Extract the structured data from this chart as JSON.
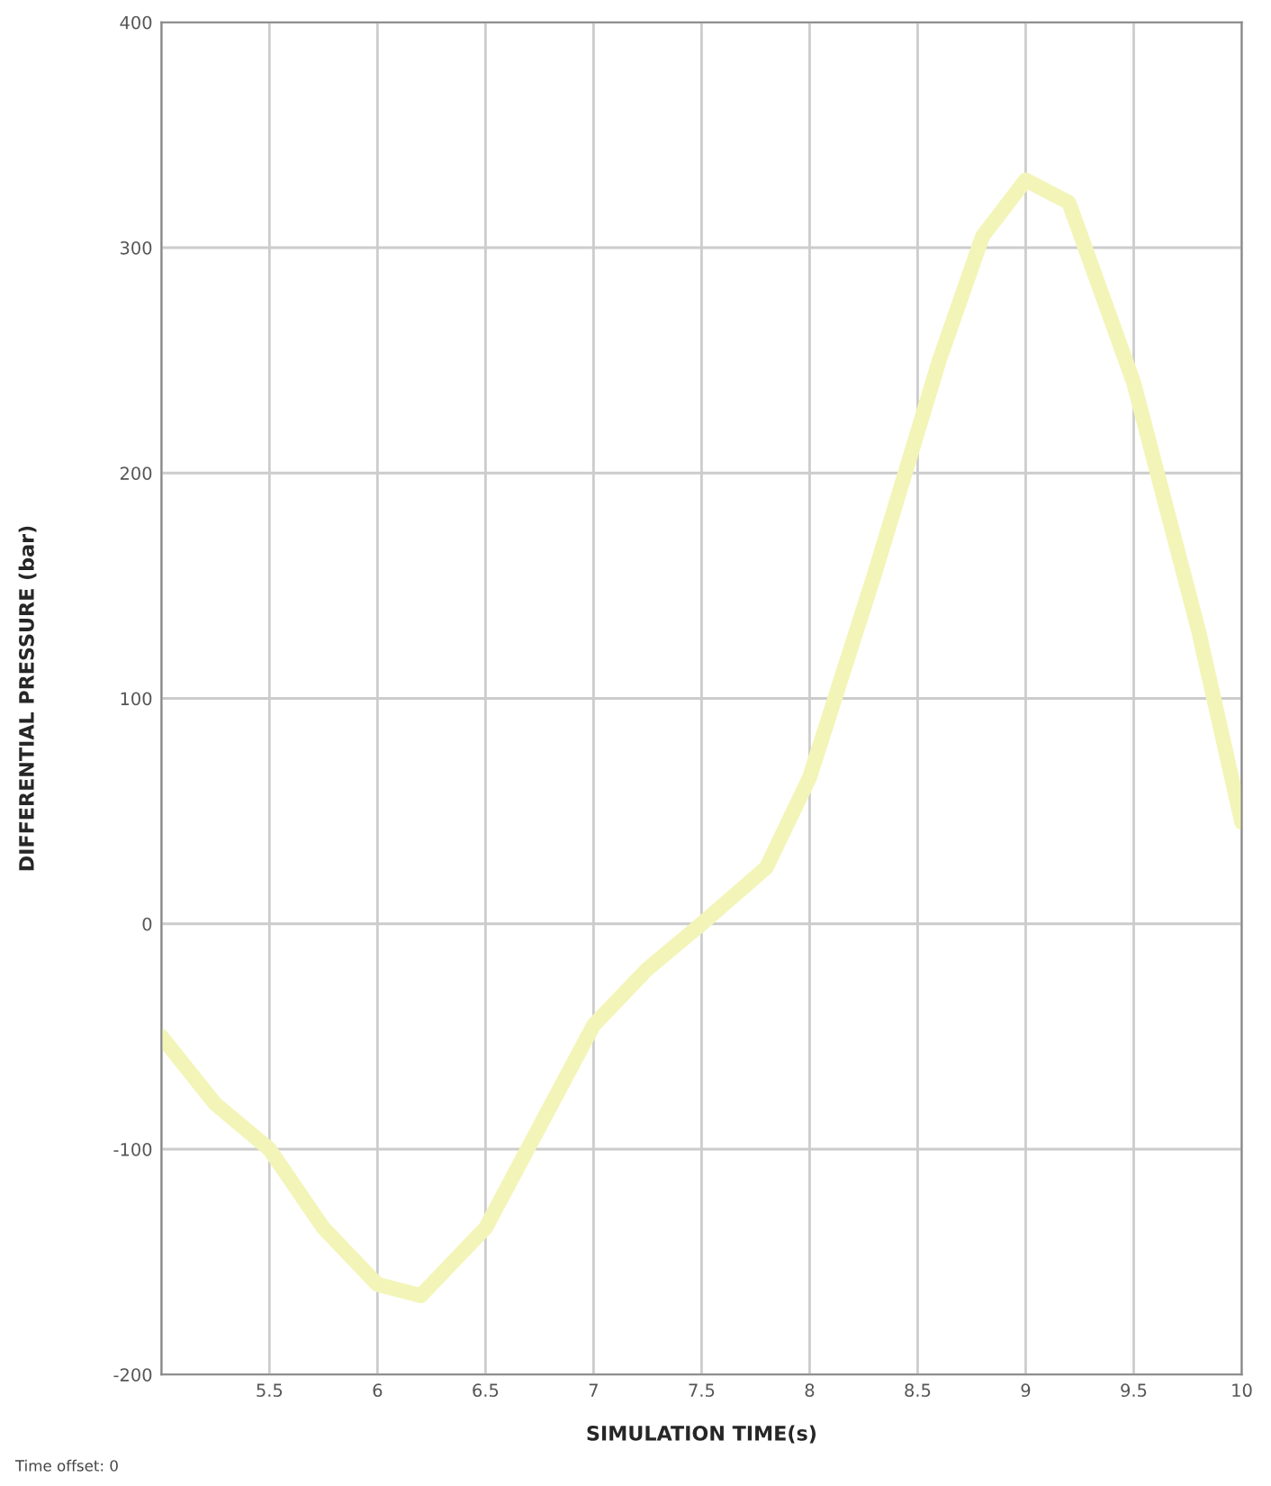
{
  "chart_data": {
    "type": "line",
    "xlabel": "SIMULATION TIME(s)",
    "ylabel": "DIFFERENTIAL PRESSURE (bar)",
    "x": [
      5,
      5.25,
      5.5,
      5.75,
      6,
      6.2,
      6.5,
      6.75,
      7,
      7.25,
      7.5,
      7.8,
      8,
      8.3,
      8.6,
      8.8,
      9,
      9.2,
      9.5,
      9.8,
      10
    ],
    "series": [
      {
        "color": "#f3f5b8",
        "values": [
          -50,
          -80,
          -100,
          -135,
          -160,
          -165,
          -135,
          -90,
          -45,
          -20,
          0,
          25,
          65,
          155,
          250,
          305,
          330,
          320,
          240,
          130,
          45
        ]
      }
    ],
    "xlim": [
      5,
      10
    ],
    "xticks": [
      {
        "value": 5,
        "label": null
      },
      5.5,
      6,
      6.5,
      7,
      7.5,
      8,
      8.5,
      9,
      9.5,
      10
    ],
    "ylim": [
      -200,
      400
    ],
    "yticks": [
      -200,
      -100,
      0,
      100,
      200,
      300,
      400
    ],
    "grid": true,
    "annotations": [
      "Time offset: 0"
    ]
  }
}
